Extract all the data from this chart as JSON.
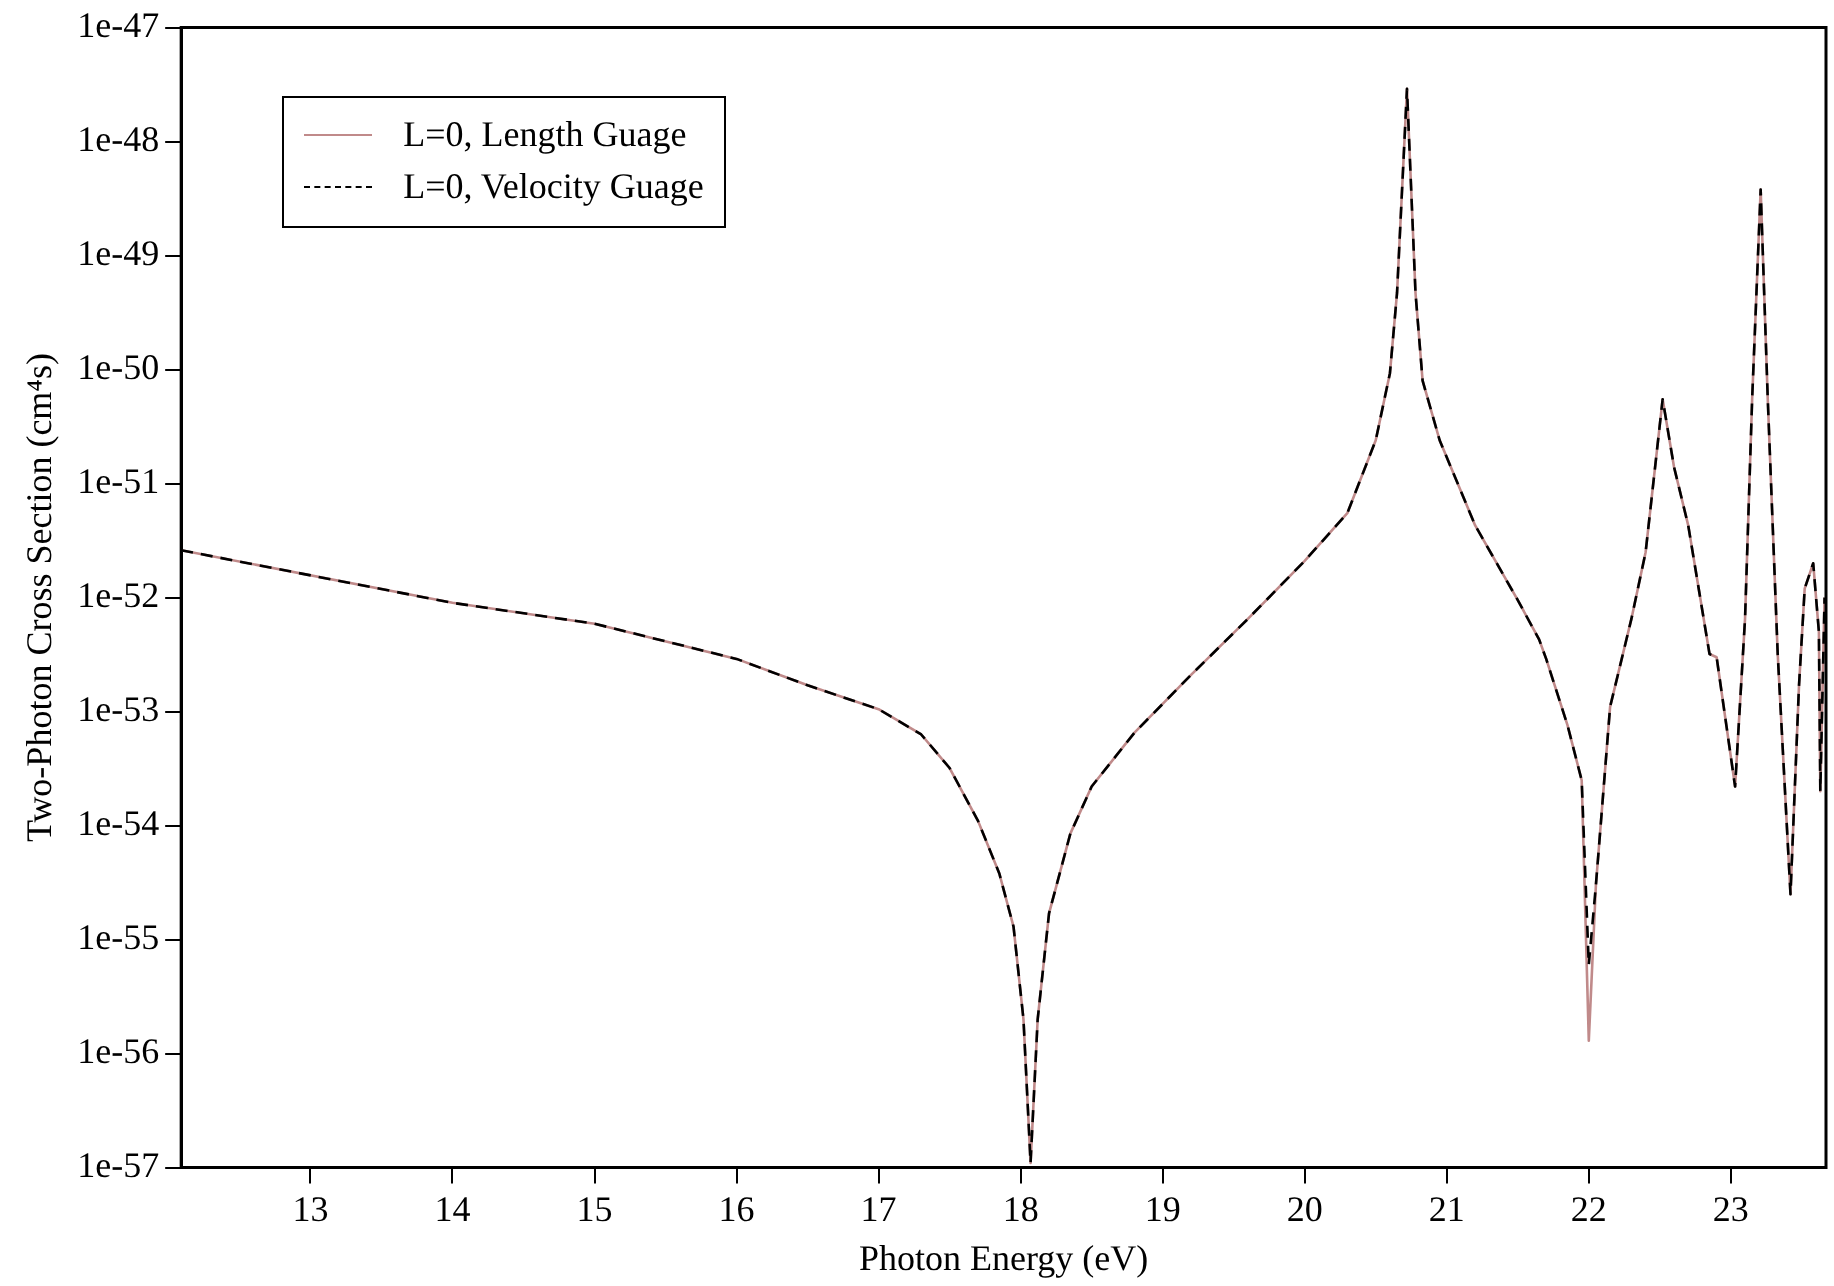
{
  "chart_data": {
    "type": "line",
    "xlabel": "Photon Energy (eV)",
    "ylabel": "Two-Photon Cross Section (cm⁴s)",
    "x": [
      12.09,
      14,
      15,
      16,
      16.5,
      17,
      17.3,
      17.5,
      17.7,
      17.85,
      17.95,
      18.02,
      18.07,
      18.12,
      18.2,
      18.35,
      18.5,
      18.8,
      19.2,
      19.6,
      20,
      20.3,
      20.5,
      20.6,
      20.65,
      20.72,
      20.78,
      20.83,
      20.95,
      21.2,
      21.5,
      21.65,
      21.7,
      21.85,
      21.95,
      22.0,
      22.05,
      22.15,
      22.3,
      22.4,
      22.52,
      22.6,
      22.7,
      22.85,
      22.9,
      23.03,
      23.1,
      23.15,
      23.21,
      23.26,
      23.33,
      23.42,
      23.48,
      23.52,
      23.58,
      23.62,
      23.63,
      23.66
    ],
    "series": [
      {
        "name": "L=0, Length Guage",
        "color": "#c08a8a",
        "line_style": "solid",
        "values": [
          2.6e-52,
          9e-53,
          5.9e-53,
          2.9e-53,
          1.7e-53,
          1.05e-53,
          6.3e-54,
          3.2e-54,
          1.1e-54,
          3.8e-55,
          1.3e-55,
          2e-56,
          1.1e-57,
          2e-56,
          1.7e-55,
          8.5e-55,
          2.2e-54,
          6.5e-54,
          2.1e-53,
          6.5e-53,
          2.1e-52,
          5.5e-52,
          2.4e-51,
          9.3e-51,
          4.7e-50,
          2.9e-48,
          4.7e-50,
          8e-51,
          2.4e-51,
          4.3e-52,
          9.5e-53,
          4.3e-53,
          2.9e-53,
          7.6e-54,
          2.5e-54,
          1.3e-56,
          3e-55,
          1.1e-53,
          6.5e-53,
          2.5e-52,
          5.5e-51,
          1.4e-51,
          4.3e-52,
          3.2e-53,
          3e-53,
          2.2e-54,
          6.5e-53,
          5.5e-51,
          3.8e-49,
          5.5e-51,
          3.2e-53,
          2.5e-55,
          1.7e-53,
          1.2e-52,
          2e-52,
          5e-53,
          2e-54,
          1e-52
        ]
      },
      {
        "name": "L=0, Velocity Guage",
        "color": "#000000",
        "line_style": "dashed",
        "values": [
          2.6e-52,
          9e-53,
          5.9e-53,
          2.9e-53,
          1.7e-53,
          1.05e-53,
          6.3e-54,
          3.2e-54,
          1.1e-54,
          3.8e-55,
          1.3e-55,
          2e-56,
          1.1e-57,
          2e-56,
          1.7e-55,
          8.5e-55,
          2.2e-54,
          6.5e-54,
          2.1e-53,
          6.5e-53,
          2.1e-52,
          5.5e-52,
          2.4e-51,
          9.3e-51,
          4.7e-50,
          2.9e-48,
          4.7e-50,
          8e-51,
          2.4e-51,
          4.3e-52,
          9.5e-53,
          4.3e-53,
          2.9e-53,
          7.6e-54,
          2.5e-54,
          6e-56,
          3e-55,
          1.1e-53,
          6.5e-53,
          2.5e-52,
          5.5e-51,
          1.4e-51,
          4.3e-52,
          3.2e-53,
          3e-53,
          2.2e-54,
          6.5e-53,
          5.5e-51,
          3.8e-49,
          5.5e-51,
          3.2e-53,
          2.5e-55,
          1.7e-53,
          1.2e-52,
          2e-52,
          5e-53,
          2e-54,
          1e-52
        ]
      }
    ],
    "xlim": [
      12.09,
      23.67
    ],
    "xticks": [
      13,
      14,
      15,
      16,
      17,
      18,
      19,
      20,
      21,
      22,
      23
    ],
    "log": "y",
    "ylim": [
      1e-57,
      1e-47
    ],
    "yticks": [
      {
        "value": 1e-57,
        "label": "1e-57"
      },
      {
        "value": 1e-56,
        "label": "1e-56"
      },
      {
        "value": 1e-55,
        "label": "1e-55"
      },
      {
        "value": 1e-54,
        "label": "1e-54"
      },
      {
        "value": 1e-53,
        "label": "1e-53"
      },
      {
        "value": 1e-52,
        "label": "1e-52"
      },
      {
        "value": 1e-51,
        "label": "1e-51"
      },
      {
        "value": 1e-50,
        "label": "1e-50"
      },
      {
        "value": 1e-49,
        "label": "1e-49"
      },
      {
        "value": 1e-48,
        "label": "1e-48"
      },
      {
        "value": 1e-47,
        "label": "1e-47"
      }
    ],
    "grid": false,
    "legend": "top left",
    "marker": "none"
  }
}
